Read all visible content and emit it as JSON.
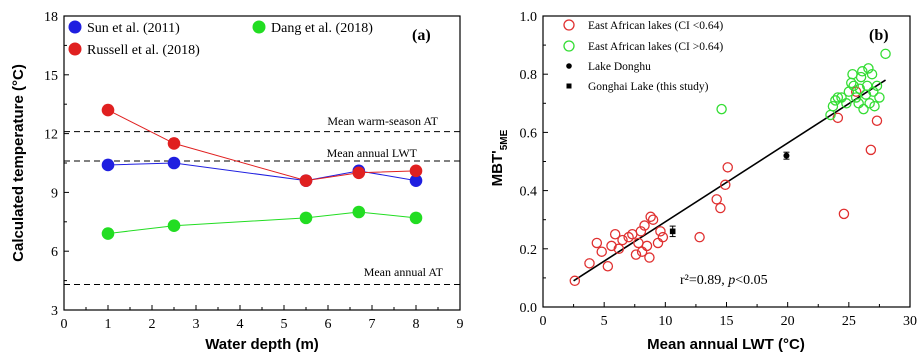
{
  "chart_data": [
    {
      "type": "line",
      "panel_label": "(a)",
      "xlabel": "Water depth (m)",
      "ylabel": "Calculated temperature (°C)",
      "xlim": [
        0,
        9
      ],
      "ylim": [
        3,
        18
      ],
      "xticks": [
        0,
        1,
        2,
        3,
        4,
        5,
        6,
        7,
        8,
        9
      ],
      "yticks": [
        3,
        6,
        9,
        12,
        15,
        18
      ],
      "grid": false,
      "legend_position": "top",
      "colors": {
        "sun": "#1f1fe0",
        "russell": "#e02020",
        "dang": "#22dd22"
      },
      "series": [
        {
          "name": "Sun et al. (2011)",
          "color": "#1f1fe0",
          "x": [
            1,
            2.5,
            5.5,
            6.7,
            8
          ],
          "values": [
            10.4,
            10.5,
            9.6,
            10.1,
            9.6
          ]
        },
        {
          "name": "Russell et al. (2018)",
          "color": "#e02020",
          "x": [
            1,
            2.5,
            5.5,
            6.7,
            8
          ],
          "values": [
            13.2,
            11.5,
            9.6,
            10.0,
            10.1
          ]
        },
        {
          "name": "Dang et al. (2018)",
          "color": "#22dd22",
          "x": [
            1,
            2.5,
            5.5,
            6.7,
            8
          ],
          "values": [
            6.9,
            7.3,
            7.7,
            8.0,
            7.7
          ]
        }
      ],
      "reference_lines": [
        {
          "label": "Mean warm-season AT",
          "value": 12.1
        },
        {
          "label": "Mean annual LWT",
          "value": 10.6
        },
        {
          "label": "Mean annual AT",
          "value": 4.3
        }
      ]
    },
    {
      "type": "scatter",
      "panel_label": "(b)",
      "xlabel": "Mean annual LWT (°C)",
      "ylabel_main": "MBT'",
      "ylabel_sub": "5ME",
      "xlim": [
        0,
        30
      ],
      "ylim": [
        0.0,
        1.0
      ],
      "xticks": [
        0,
        5,
        10,
        15,
        20,
        25,
        30
      ],
      "yticks": [
        "0.0",
        "0.2",
        "0.4",
        "0.6",
        "0.8",
        "1.0"
      ],
      "grid": false,
      "legend_position": "top-left",
      "annotation": {
        "r2": "r²=0.89, ",
        "p": "p",
        "rest": "<0.05"
      },
      "regression": {
        "x": [
          2.5,
          28.0
        ],
        "y": [
          0.09,
          0.78
        ]
      },
      "series": [
        {
          "name": "East African lakes (CI <0.64)",
          "color": "#e03030",
          "marker": "open-circle",
          "points": [
            [
              2.6,
              0.09
            ],
            [
              3.8,
              0.15
            ],
            [
              4.4,
              0.22
            ],
            [
              4.8,
              0.19
            ],
            [
              5.3,
              0.14
            ],
            [
              5.6,
              0.21
            ],
            [
              5.9,
              0.25
            ],
            [
              6.2,
              0.2
            ],
            [
              6.5,
              0.23
            ],
            [
              7.0,
              0.24
            ],
            [
              7.3,
              0.25
            ],
            [
              7.6,
              0.18
            ],
            [
              7.8,
              0.22
            ],
            [
              8.0,
              0.26
            ],
            [
              8.1,
              0.19
            ],
            [
              8.3,
              0.28
            ],
            [
              8.5,
              0.21
            ],
            [
              8.7,
              0.17
            ],
            [
              8.8,
              0.31
            ],
            [
              9.0,
              0.3
            ],
            [
              9.4,
              0.22
            ],
            [
              9.6,
              0.26
            ],
            [
              9.8,
              0.24
            ],
            [
              12.8,
              0.24
            ],
            [
              14.2,
              0.37
            ],
            [
              14.5,
              0.34
            ],
            [
              14.9,
              0.42
            ],
            [
              15.1,
              0.48
            ],
            [
              24.1,
              0.65
            ],
            [
              24.6,
              0.32
            ],
            [
              25.6,
              0.74
            ],
            [
              26.8,
              0.54
            ],
            [
              27.3,
              0.64
            ]
          ]
        },
        {
          "name": "East African lakes (CI >0.64)",
          "color": "#33dd33",
          "marker": "open-circle",
          "points": [
            [
              14.6,
              0.68
            ],
            [
              23.5,
              0.66
            ],
            [
              23.7,
              0.69
            ],
            [
              23.9,
              0.71
            ],
            [
              24.1,
              0.72
            ],
            [
              24.4,
              0.72
            ],
            [
              24.8,
              0.7
            ],
            [
              25.0,
              0.74
            ],
            [
              25.2,
              0.77
            ],
            [
              25.3,
              0.8
            ],
            [
              25.4,
              0.76
            ],
            [
              25.6,
              0.72
            ],
            [
              25.8,
              0.7
            ],
            [
              25.9,
              0.75
            ],
            [
              26.0,
              0.79
            ],
            [
              26.1,
              0.81
            ],
            [
              26.2,
              0.68
            ],
            [
              26.4,
              0.73
            ],
            [
              26.5,
              0.76
            ],
            [
              26.6,
              0.82
            ],
            [
              26.7,
              0.7
            ],
            [
              26.9,
              0.8
            ],
            [
              27.0,
              0.74
            ],
            [
              27.1,
              0.69
            ],
            [
              27.3,
              0.76
            ],
            [
              27.5,
              0.72
            ],
            [
              28.0,
              0.87
            ]
          ]
        },
        {
          "name": "Lake Donghu",
          "color": "#000000",
          "marker": "filled-circle",
          "points": [
            [
              19.9,
              0.52
            ]
          ],
          "error": [
            0.012
          ]
        },
        {
          "name": "Gonghai Lake (this study)",
          "color": "#000000",
          "marker": "filled-square",
          "points": [
            [
              10.6,
              0.26
            ]
          ],
          "error": [
            0.018
          ]
        }
      ]
    }
  ]
}
